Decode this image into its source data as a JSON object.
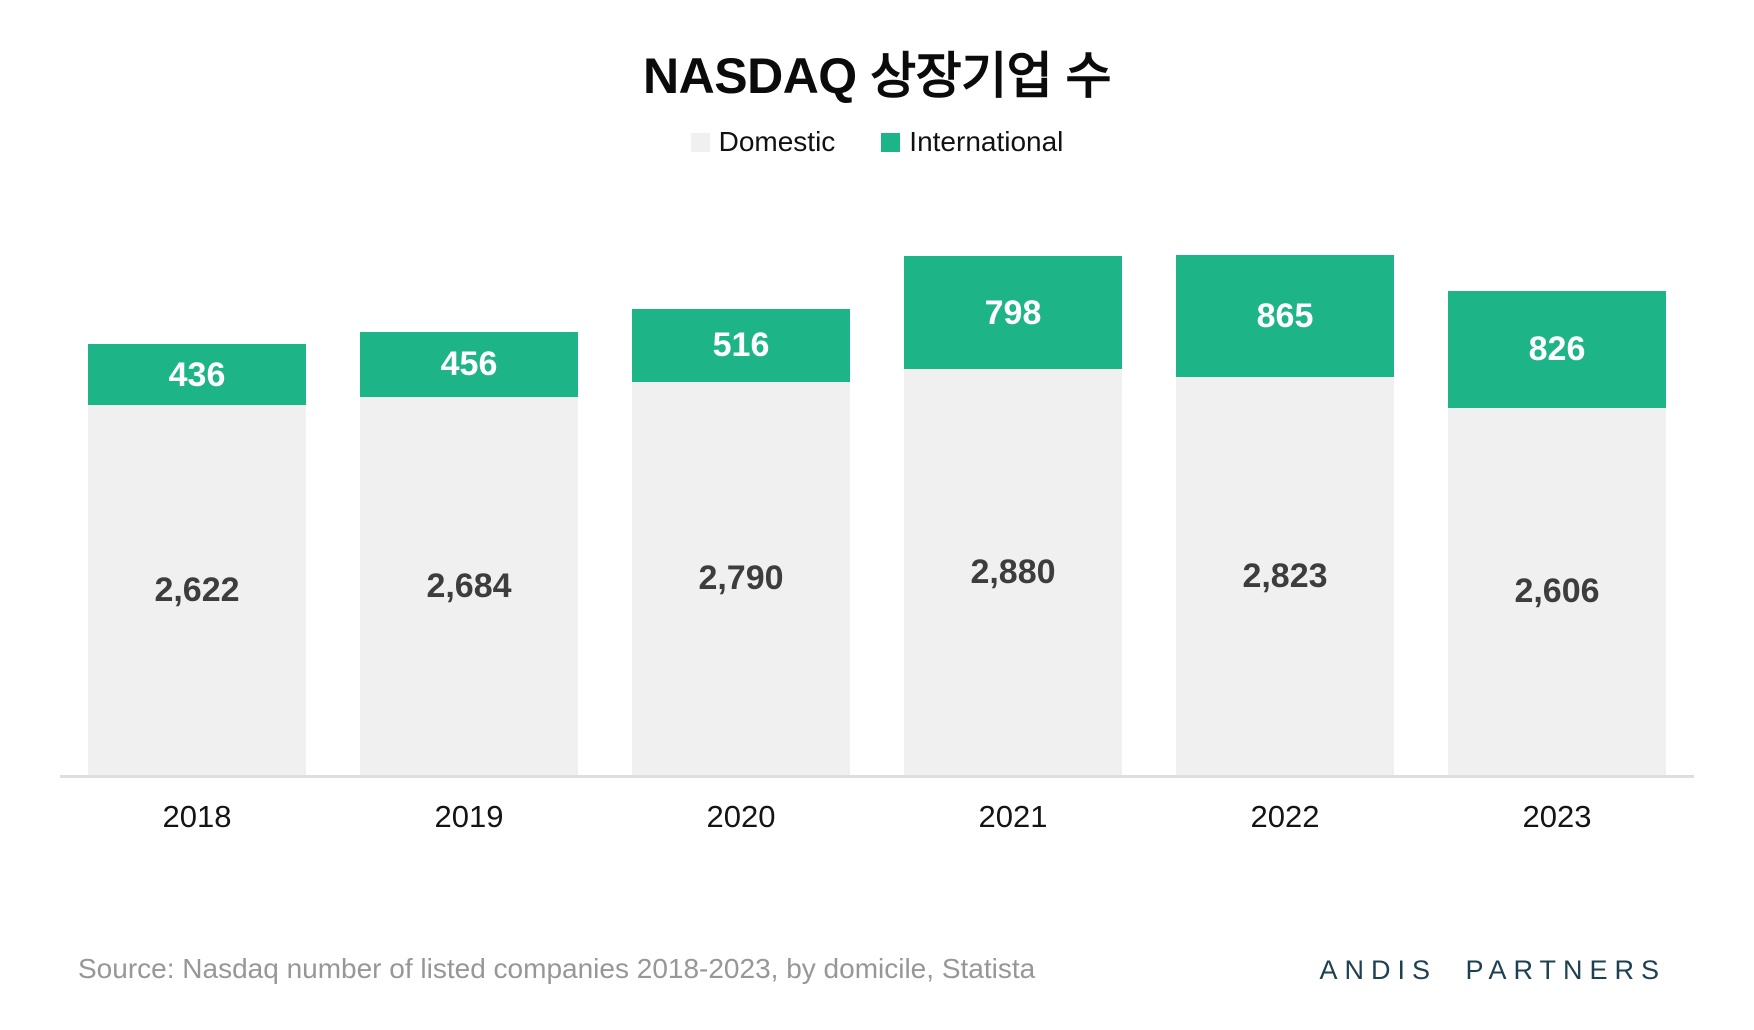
{
  "title": "NASDAQ 상장기업 수",
  "chart_data": {
    "type": "bar",
    "stacked": true,
    "title": "NASDAQ 상장기업 수",
    "categories": [
      "2018",
      "2019",
      "2020",
      "2021",
      "2022",
      "2023"
    ],
    "series": [
      {
        "name": "Domestic",
        "color": "#f0f0f0",
        "values": [
          2622,
          2684,
          2790,
          2880,
          2823,
          2606
        ]
      },
      {
        "name": "International",
        "color": "#1db487",
        "values": [
          436,
          456,
          516,
          798,
          865,
          826
        ]
      }
    ],
    "value_labels": {
      "domestic": [
        "2,622",
        "2,684",
        "2,790",
        "2,880",
        "2,823",
        "2,606"
      ],
      "international": [
        "436",
        "456",
        "516",
        "798",
        "865",
        "826"
      ]
    },
    "totals": [
      3058,
      3140,
      3306,
      3678,
      3688,
      3432
    ],
    "ylim": [
      0,
      3688
    ],
    "grid": false,
    "legend_position": "top",
    "axis_line_color": "#dedede",
    "domestic_label_color": "#3d3d3d",
    "international_label_color": "#ffffff"
  },
  "footer": {
    "source": "Source: Nasdaq number of listed companies 2018-2023, by domicile, Statista",
    "brand": "ANDIS PARTNERS"
  }
}
